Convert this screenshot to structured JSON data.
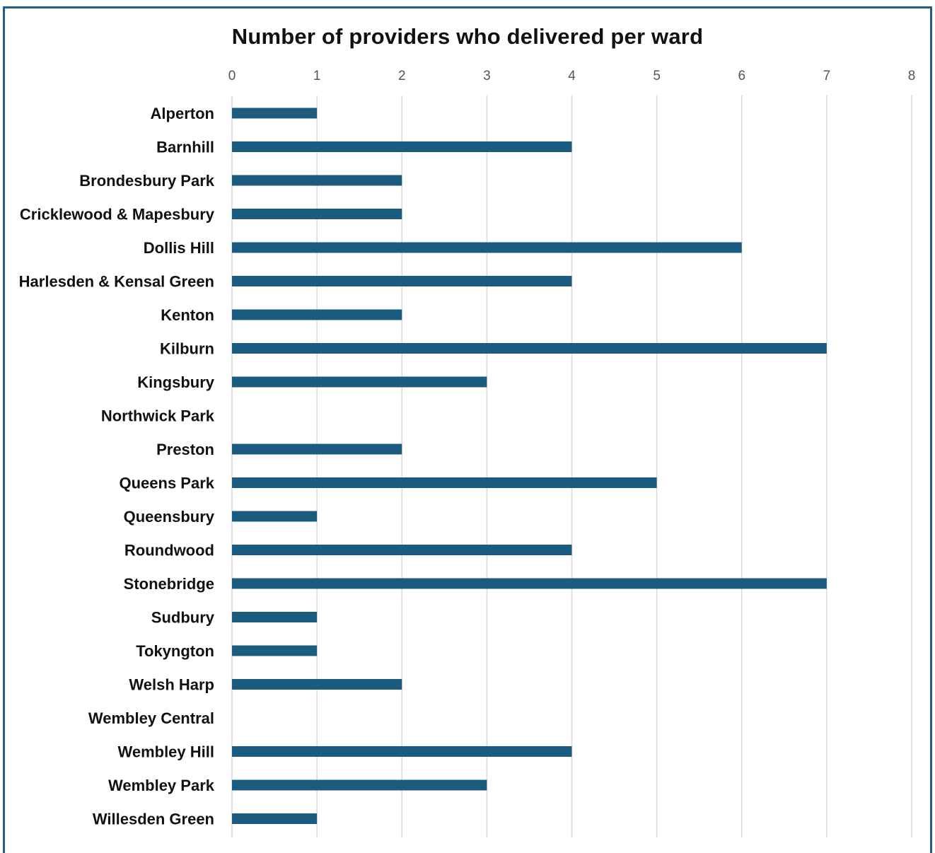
{
  "chart_data": {
    "type": "bar",
    "orientation": "horizontal",
    "title": "Number of providers who delivered per ward",
    "xlabel": "",
    "ylabel": "",
    "xlim": [
      0,
      8
    ],
    "ticks": [
      0,
      1,
      2,
      3,
      4,
      5,
      6,
      7,
      8
    ],
    "grid": true,
    "categories": [
      "Alperton",
      "Barnhill",
      "Brondesbury Park",
      "Cricklewood & Mapesbury",
      "Dollis Hill",
      "Harlesden & Kensal Green",
      "Kenton",
      "Kilburn",
      "Kingsbury",
      "Northwick Park",
      "Preston",
      "Queens Park",
      "Queensbury",
      "Roundwood",
      "Stonebridge",
      "Sudbury",
      "Tokyngton",
      "Welsh Harp",
      "Wembley Central",
      "Wembley Hill",
      "Wembley Park",
      "Willesden Green"
    ],
    "values": [
      1,
      4,
      2,
      2,
      6,
      4,
      2,
      7,
      3,
      0,
      2,
      5,
      1,
      4,
      7,
      1,
      1,
      2,
      0,
      4,
      3,
      1
    ],
    "bar_color": "#1b5b80",
    "grid_color": "#d9d9d9",
    "frame_color": "#1f5f86"
  }
}
